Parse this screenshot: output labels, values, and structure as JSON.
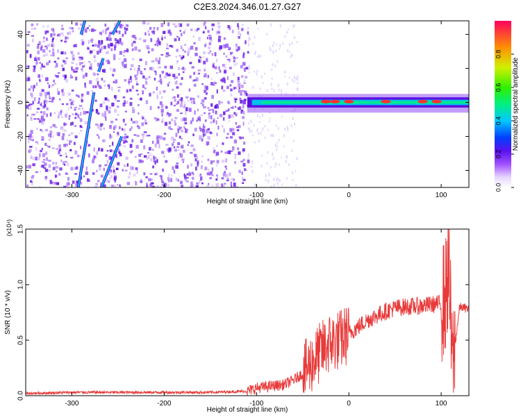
{
  "title": "C2E3.2024.346.01.27.G27",
  "chart_data": [
    {
      "type": "heatmap",
      "xlabel": "Height of straight line (km)",
      "ylabel": "Frequency (Hz)",
      "xlim": [
        -350,
        130
      ],
      "ylim": [
        -50,
        48
      ],
      "x_ticks": [
        -300,
        -200,
        -100,
        0,
        100
      ],
      "y_ticks": [
        -40,
        -20,
        0,
        20,
        40
      ],
      "colorbar": {
        "label": "Normalized spectral amplitude",
        "range": [
          0,
          1
        ],
        "ticks": [
          0.0,
          0.2,
          0.4,
          0.6,
          0.8
        ],
        "tick_labels": [
          "0.0",
          "0.2",
          "0.4",
          "0.6",
          "0.8"
        ]
      },
      "features": [
        {
          "kind": "diagonal-streak",
          "x": [
            -293,
            -276
          ],
          "y": [
            -50,
            6
          ]
        },
        {
          "kind": "diagonal-streak",
          "x": [
            -290,
            -286
          ],
          "y": [
            40,
            48
          ]
        },
        {
          "kind": "diagonal-streak",
          "x": [
            -271,
            -266
          ],
          "y": [
            18,
            26
          ]
        },
        {
          "kind": "diagonal-streak",
          "x": [
            -256,
            -248
          ],
          "y": [
            40,
            48
          ]
        },
        {
          "kind": "diagonal-streak",
          "x": [
            -268,
            -246
          ],
          "y": [
            -50,
            -20
          ]
        },
        {
          "kind": "signal-band",
          "x": [
            -110,
            130
          ],
          "y_center": 0,
          "peak_amplitude": 0.95
        }
      ]
    },
    {
      "type": "line",
      "xlabel": "Height of straight line (km)",
      "ylabel": "SNR (10 * v/v)",
      "y_multiplier": "(x10⁴)",
      "xlim": [
        -350,
        130
      ],
      "ylim": [
        0,
        1.5
      ],
      "x_ticks": [
        -300,
        -200,
        -100,
        0,
        100
      ],
      "y_ticks": [
        0.0,
        0.5,
        1.0,
        1.5
      ],
      "y_tick_labels": [
        "0.0",
        "0.5",
        "1.0",
        "1.5"
      ],
      "series": [
        {
          "color": "#e83a3a",
          "x": [
            -350,
            -300,
            -250,
            -200,
            -150,
            -110,
            -100,
            -90,
            -70,
            -60,
            -50,
            -40,
            -30,
            -20,
            -10,
            0,
            10,
            20,
            30,
            40,
            50,
            60,
            80,
            90,
            100,
            105,
            108,
            112,
            120,
            130
          ],
          "y": [
            0.02,
            0.03,
            0.03,
            0.03,
            0.03,
            0.04,
            0.07,
            0.08,
            0.1,
            0.14,
            0.2,
            0.3,
            0.4,
            0.48,
            0.5,
            0.56,
            0.62,
            0.68,
            0.72,
            0.76,
            0.79,
            0.8,
            0.81,
            0.82,
            0.83,
            0.9,
            1.2,
            0.25,
            0.8,
            0.78
          ]
        }
      ]
    }
  ]
}
